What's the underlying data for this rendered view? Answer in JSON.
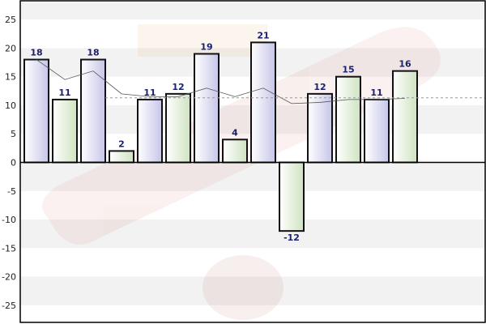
{
  "chart_data": {
    "type": "bar",
    "title": "",
    "xlabel": "",
    "ylabel": "",
    "ylim": [
      -28,
      28
    ],
    "yticks": [
      -25,
      -20,
      -15,
      -10,
      -5,
      0,
      5,
      10,
      15,
      20,
      25
    ],
    "grid": true,
    "legend": "none",
    "values": [
      18,
      11,
      18,
      2,
      11,
      12,
      19,
      4,
      21,
      -12,
      12,
      15,
      11,
      16
    ],
    "data_labels": [
      "18",
      "11",
      "18",
      "2",
      "11",
      "12",
      "19",
      "4",
      "21",
      "-12",
      "12",
      "15",
      "11",
      "16"
    ],
    "bar_styles": [
      "purple",
      "green",
      "purple",
      "green",
      "purple",
      "green",
      "purple",
      "green",
      "purple",
      "green",
      "purple",
      "green",
      "purple",
      "green"
    ],
    "trend_line": [
      18,
      14.5,
      16,
      12,
      11.5,
      11.5,
      13,
      11.5,
      13,
      10.3,
      10.5,
      11,
      11,
      11.2
    ],
    "average_line": 11.3,
    "colors": {
      "purple_top": "#ffffff",
      "purple_bottom": "#c6c6e8",
      "green_top": "#ffffff",
      "green_bottom": "#cfe3c0",
      "bar_stroke": "#111111",
      "label": "#1a1f6e",
      "band": "#f2f2f2",
      "axis": "#000000",
      "trend": "#555555",
      "average": "#999999"
    }
  }
}
